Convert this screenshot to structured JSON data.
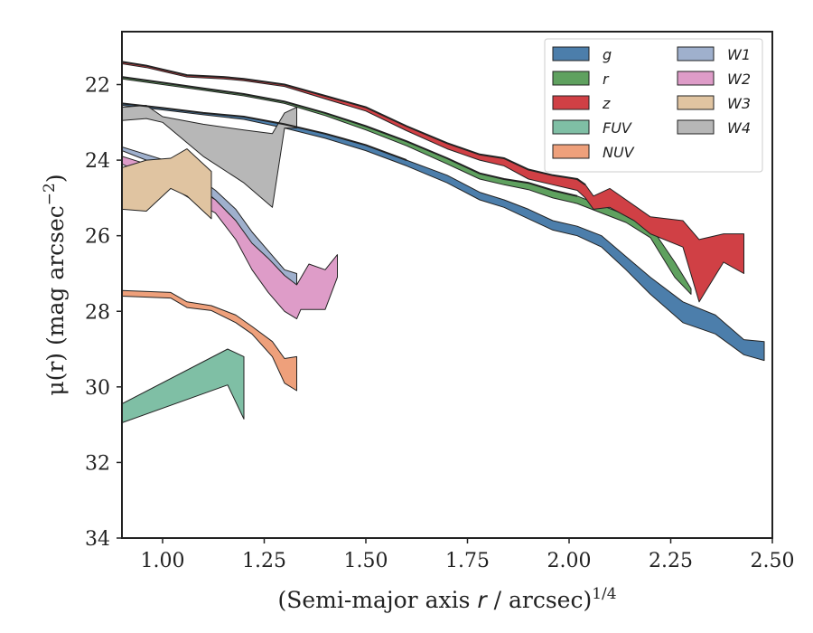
{
  "chart_data": {
    "type": "area",
    "xlabel": "(Semi-major axis r / arcsec)",
    "xlabel_italic": "r",
    "xlabel_sup": "1/4",
    "ylabel": "μ(r) (mag arcsec",
    "ylabel_sup": "−2",
    "ylabel_close": ")",
    "xlim": [
      0.9,
      2.5
    ],
    "ylim": [
      34,
      20.6
    ],
    "y_inverted": true,
    "x_ticks": [
      1.0,
      1.25,
      1.5,
      1.75,
      2.0,
      2.25,
      2.5
    ],
    "x_tick_labels": [
      "1.00",
      "1.25",
      "1.50",
      "1.75",
      "2.00",
      "2.25",
      "2.50"
    ],
    "y_ticks": [
      22,
      24,
      26,
      28,
      30,
      32,
      34
    ],
    "y_tick_labels": [
      "22",
      "24",
      "26",
      "28",
      "30",
      "32",
      "34"
    ],
    "legend": {
      "placement": "top-right",
      "columns": 2
    },
    "series": [
      {
        "name": "g",
        "color": "#4c7eab",
        "upper": [
          [
            0.9,
            22.5
          ],
          [
            1.0,
            22.62
          ],
          [
            1.1,
            22.75
          ],
          [
            1.2,
            22.85
          ],
          [
            1.3,
            23.05
          ],
          [
            1.4,
            23.3
          ],
          [
            1.5,
            23.6
          ],
          [
            1.6,
            24.0
          ],
          [
            1.7,
            24.4
          ],
          [
            1.78,
            24.85
          ],
          [
            1.84,
            25.05
          ],
          [
            1.9,
            25.3
          ],
          [
            1.96,
            25.6
          ],
          [
            2.02,
            25.75
          ],
          [
            2.08,
            26.0
          ],
          [
            2.14,
            26.55
          ],
          [
            2.2,
            27.1
          ],
          [
            2.28,
            27.75
          ],
          [
            2.36,
            28.1
          ],
          [
            2.43,
            28.75
          ],
          [
            2.48,
            28.8
          ]
        ],
        "lower": [
          [
            0.9,
            22.55
          ],
          [
            1.0,
            22.67
          ],
          [
            1.1,
            22.8
          ],
          [
            1.2,
            22.92
          ],
          [
            1.3,
            23.15
          ],
          [
            1.4,
            23.42
          ],
          [
            1.5,
            23.75
          ],
          [
            1.6,
            24.15
          ],
          [
            1.7,
            24.6
          ],
          [
            1.78,
            25.05
          ],
          [
            1.84,
            25.25
          ],
          [
            1.9,
            25.55
          ],
          [
            1.96,
            25.85
          ],
          [
            2.02,
            26.0
          ],
          [
            2.08,
            26.3
          ],
          [
            2.14,
            26.9
          ],
          [
            2.2,
            27.55
          ],
          [
            2.28,
            28.3
          ],
          [
            2.36,
            28.6
          ],
          [
            2.43,
            29.15
          ],
          [
            2.48,
            29.3
          ]
        ]
      },
      {
        "name": "r",
        "color": "#5fa15f",
        "upper": [
          [
            0.9,
            21.8
          ],
          [
            1.0,
            21.95
          ],
          [
            1.1,
            22.1
          ],
          [
            1.2,
            22.25
          ],
          [
            1.3,
            22.45
          ],
          [
            1.4,
            22.75
          ],
          [
            1.5,
            23.1
          ],
          [
            1.6,
            23.5
          ],
          [
            1.7,
            23.95
          ],
          [
            1.78,
            24.35
          ],
          [
            1.84,
            24.5
          ],
          [
            1.9,
            24.6
          ],
          [
            1.96,
            24.8
          ],
          [
            2.02,
            24.95
          ],
          [
            2.08,
            25.2
          ],
          [
            2.14,
            25.45
          ],
          [
            2.2,
            25.75
          ],
          [
            2.26,
            26.7
          ],
          [
            2.3,
            27.4
          ]
        ],
        "lower": [
          [
            0.9,
            21.85
          ],
          [
            1.0,
            22.0
          ],
          [
            1.1,
            22.15
          ],
          [
            1.2,
            22.3
          ],
          [
            1.3,
            22.5
          ],
          [
            1.4,
            22.82
          ],
          [
            1.5,
            23.2
          ],
          [
            1.6,
            23.62
          ],
          [
            1.7,
            24.1
          ],
          [
            1.78,
            24.5
          ],
          [
            1.84,
            24.65
          ],
          [
            1.9,
            24.78
          ],
          [
            1.96,
            25.0
          ],
          [
            2.02,
            25.15
          ],
          [
            2.08,
            25.4
          ],
          [
            2.14,
            25.65
          ],
          [
            2.2,
            26.05
          ],
          [
            2.26,
            27.1
          ],
          [
            2.3,
            27.55
          ]
        ]
      },
      {
        "name": "z",
        "color": "#d04045",
        "upper": [
          [
            0.9,
            21.4
          ],
          [
            0.96,
            21.5
          ],
          [
            1.0,
            21.6
          ],
          [
            1.06,
            21.75
          ],
          [
            1.15,
            21.8
          ],
          [
            1.2,
            21.85
          ],
          [
            1.3,
            22.0
          ],
          [
            1.4,
            22.3
          ],
          [
            1.5,
            22.6
          ],
          [
            1.6,
            23.1
          ],
          [
            1.7,
            23.55
          ],
          [
            1.78,
            23.85
          ],
          [
            1.84,
            23.95
          ],
          [
            1.9,
            24.25
          ],
          [
            1.96,
            24.4
          ],
          [
            2.02,
            24.5
          ],
          [
            2.04,
            24.65
          ],
          [
            2.06,
            24.95
          ],
          [
            2.1,
            24.75
          ],
          [
            2.16,
            25.2
          ],
          [
            2.2,
            25.5
          ],
          [
            2.28,
            25.6
          ],
          [
            2.32,
            26.1
          ],
          [
            2.38,
            25.95
          ],
          [
            2.43,
            25.95
          ]
        ],
        "lower": [
          [
            0.9,
            21.45
          ],
          [
            0.96,
            21.55
          ],
          [
            1.0,
            21.65
          ],
          [
            1.06,
            21.8
          ],
          [
            1.15,
            21.85
          ],
          [
            1.2,
            21.9
          ],
          [
            1.3,
            22.05
          ],
          [
            1.4,
            22.38
          ],
          [
            1.5,
            22.7
          ],
          [
            1.6,
            23.22
          ],
          [
            1.7,
            23.7
          ],
          [
            1.78,
            24.0
          ],
          [
            1.84,
            24.15
          ],
          [
            1.9,
            24.5
          ],
          [
            1.96,
            24.65
          ],
          [
            2.02,
            24.8
          ],
          [
            2.04,
            25.0
          ],
          [
            2.06,
            25.3
          ],
          [
            2.1,
            25.25
          ],
          [
            2.16,
            25.6
          ],
          [
            2.2,
            25.95
          ],
          [
            2.28,
            26.3
          ],
          [
            2.32,
            27.75
          ],
          [
            2.38,
            26.7
          ],
          [
            2.43,
            27.0
          ]
        ]
      },
      {
        "name": "FUV",
        "color": "#7fbfa5",
        "upper": [
          [
            0.9,
            30.45
          ],
          [
            1.16,
            29.0
          ],
          [
            1.2,
            29.2
          ]
        ],
        "lower": [
          [
            0.9,
            30.95
          ],
          [
            1.16,
            29.95
          ],
          [
            1.2,
            30.85
          ]
        ]
      },
      {
        "name": "NUV",
        "color": "#eea07b",
        "upper": [
          [
            0.9,
            27.45
          ],
          [
            1.02,
            27.5
          ],
          [
            1.06,
            27.75
          ],
          [
            1.12,
            27.85
          ],
          [
            1.18,
            28.1
          ],
          [
            1.22,
            28.4
          ],
          [
            1.27,
            28.8
          ],
          [
            1.3,
            29.25
          ],
          [
            1.33,
            29.2
          ]
        ],
        "lower": [
          [
            0.9,
            27.6
          ],
          [
            1.02,
            27.65
          ],
          [
            1.06,
            27.9
          ],
          [
            1.12,
            27.98
          ],
          [
            1.18,
            28.3
          ],
          [
            1.22,
            28.6
          ],
          [
            1.27,
            29.2
          ],
          [
            1.3,
            29.9
          ],
          [
            1.33,
            30.1
          ]
        ]
      },
      {
        "name": "W1",
        "color": "#9fb0cd",
        "upper": [
          [
            0.9,
            23.65
          ],
          [
            0.96,
            23.85
          ],
          [
            1.02,
            24.05
          ],
          [
            1.08,
            24.4
          ],
          [
            1.13,
            24.8
          ],
          [
            1.18,
            25.3
          ],
          [
            1.22,
            25.9
          ],
          [
            1.26,
            26.4
          ],
          [
            1.3,
            26.9
          ],
          [
            1.33,
            27.0
          ]
        ],
        "lower": [
          [
            0.9,
            23.75
          ],
          [
            0.96,
            24.0
          ],
          [
            1.02,
            24.25
          ],
          [
            1.08,
            24.6
          ],
          [
            1.13,
            25.05
          ],
          [
            1.18,
            25.6
          ],
          [
            1.22,
            26.25
          ],
          [
            1.26,
            26.85
          ],
          [
            1.3,
            27.35
          ],
          [
            1.33,
            27.45
          ]
        ]
      },
      {
        "name": "W2",
        "color": "#de9cc8",
        "upper": [
          [
            0.9,
            23.9
          ],
          [
            0.96,
            24.1
          ],
          [
            1.02,
            24.35
          ],
          [
            1.08,
            24.7
          ],
          [
            1.13,
            25.05
          ],
          [
            1.18,
            25.6
          ],
          [
            1.22,
            26.2
          ],
          [
            1.26,
            26.6
          ],
          [
            1.3,
            27.05
          ],
          [
            1.33,
            27.3
          ],
          [
            1.36,
            26.75
          ],
          [
            1.4,
            26.9
          ],
          [
            1.43,
            26.5
          ]
        ],
        "lower": [
          [
            0.9,
            24.1
          ],
          [
            0.96,
            24.4
          ],
          [
            1.02,
            24.7
          ],
          [
            1.08,
            25.1
          ],
          [
            1.13,
            25.4
          ],
          [
            1.18,
            26.1
          ],
          [
            1.22,
            26.9
          ],
          [
            1.26,
            27.5
          ],
          [
            1.3,
            28.0
          ],
          [
            1.33,
            28.2
          ],
          [
            1.34,
            27.95
          ],
          [
            1.4,
            27.95
          ],
          [
            1.43,
            27.1
          ]
        ]
      },
      {
        "name": "W3",
        "color": "#e0c4a1",
        "upper": [
          [
            0.9,
            24.2
          ],
          [
            0.96,
            24.0
          ],
          [
            1.02,
            23.95
          ],
          [
            1.06,
            23.7
          ],
          [
            1.12,
            24.3
          ]
        ],
        "lower": [
          [
            0.9,
            25.3
          ],
          [
            0.96,
            25.35
          ],
          [
            1.02,
            24.75
          ],
          [
            1.06,
            24.95
          ],
          [
            1.12,
            25.55
          ]
        ]
      },
      {
        "name": "W4",
        "color": "#b7b7b7",
        "upper": [
          [
            0.9,
            22.6
          ],
          [
            0.96,
            22.55
          ],
          [
            1.0,
            22.85
          ],
          [
            1.1,
            23.05
          ],
          [
            1.2,
            23.2
          ],
          [
            1.27,
            23.3
          ],
          [
            1.3,
            22.75
          ],
          [
            1.33,
            22.6
          ]
        ],
        "lower": [
          [
            0.9,
            22.95
          ],
          [
            0.96,
            22.9
          ],
          [
            1.0,
            23.0
          ],
          [
            1.1,
            23.9
          ],
          [
            1.2,
            24.6
          ],
          [
            1.27,
            25.25
          ],
          [
            1.3,
            23.15
          ],
          [
            1.33,
            23.15
          ]
        ]
      }
    ],
    "outlines": [
      {
        "of": "z",
        "points": [
          [
            0.9,
            21.4
          ],
          [
            0.96,
            21.5
          ],
          [
            1.0,
            21.6
          ],
          [
            1.06,
            21.75
          ],
          [
            1.15,
            21.8
          ],
          [
            1.2,
            21.85
          ],
          [
            1.3,
            22.0
          ],
          [
            1.4,
            22.3
          ],
          [
            1.5,
            22.6
          ],
          [
            1.6,
            23.1
          ],
          [
            1.7,
            23.55
          ],
          [
            1.78,
            23.85
          ],
          [
            1.84,
            23.95
          ],
          [
            1.9,
            24.25
          ],
          [
            1.96,
            24.4
          ],
          [
            2.02,
            24.5
          ],
          [
            2.04,
            24.65
          ]
        ]
      },
      {
        "of": "r",
        "points": [
          [
            0.9,
            21.8
          ],
          [
            1.0,
            21.95
          ],
          [
            1.1,
            22.1
          ],
          [
            1.2,
            22.25
          ],
          [
            1.3,
            22.45
          ],
          [
            1.4,
            22.75
          ],
          [
            1.5,
            23.1
          ],
          [
            1.6,
            23.5
          ],
          [
            1.7,
            23.95
          ],
          [
            1.78,
            24.35
          ],
          [
            1.84,
            24.5
          ],
          [
            1.9,
            24.6
          ],
          [
            1.96,
            24.8
          ],
          [
            2.02,
            24.95
          ]
        ]
      },
      {
        "of": "g",
        "points": [
          [
            0.9,
            22.5
          ],
          [
            1.0,
            22.62
          ],
          [
            1.1,
            22.75
          ],
          [
            1.2,
            22.85
          ],
          [
            1.3,
            23.05
          ],
          [
            1.4,
            23.3
          ],
          [
            1.5,
            23.6
          ],
          [
            1.6,
            24.0
          ]
        ]
      }
    ]
  }
}
